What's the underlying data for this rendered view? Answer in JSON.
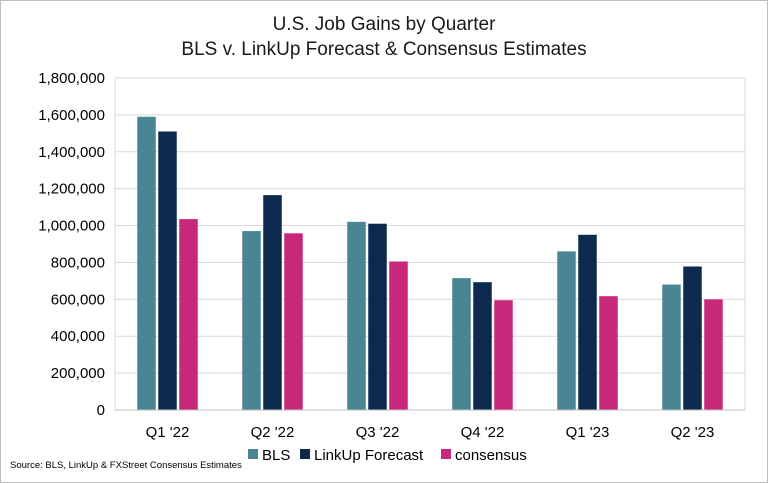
{
  "chart_data": {
    "type": "bar",
    "title": "U.S. Job Gains by Quarter",
    "subtitle": "BLS v. LinkUp Forecast & Consensus Estimates",
    "xlabel": "",
    "ylabel": "",
    "categories": [
      "Q1 '22",
      "Q2 '22",
      "Q3 '22",
      "Q4 '22",
      "Q1 '23",
      "Q2 '23"
    ],
    "series": [
      {
        "name": "BLS",
        "color": "#4a8593",
        "values": [
          1590000,
          970000,
          1020000,
          715000,
          860000,
          680000
        ]
      },
      {
        "name": "LinkUp Forecast",
        "color": "#0d2a4e",
        "values": [
          1510000,
          1165000,
          1010000,
          693000,
          950000,
          778000
        ]
      },
      {
        "name": "consensus",
        "color": "#c8287a",
        "values": [
          1035000,
          958000,
          805000,
          595000,
          617000,
          600000
        ]
      }
    ],
    "ylim": [
      0,
      1800000
    ],
    "yticks": [
      0,
      200000,
      400000,
      600000,
      800000,
      1000000,
      1200000,
      1400000,
      1600000,
      1800000
    ],
    "ytick_labels": [
      "0",
      "200,000",
      "400,000",
      "600,000",
      "800,000",
      "1,000,000",
      "1,200,000",
      "1,400,000",
      "1,600,000",
      "1,800,000"
    ],
    "grid": true,
    "legend_position": "bottom",
    "source_note": "Source: BLS, LinkUp & FXStreet Consensus Estimates"
  }
}
